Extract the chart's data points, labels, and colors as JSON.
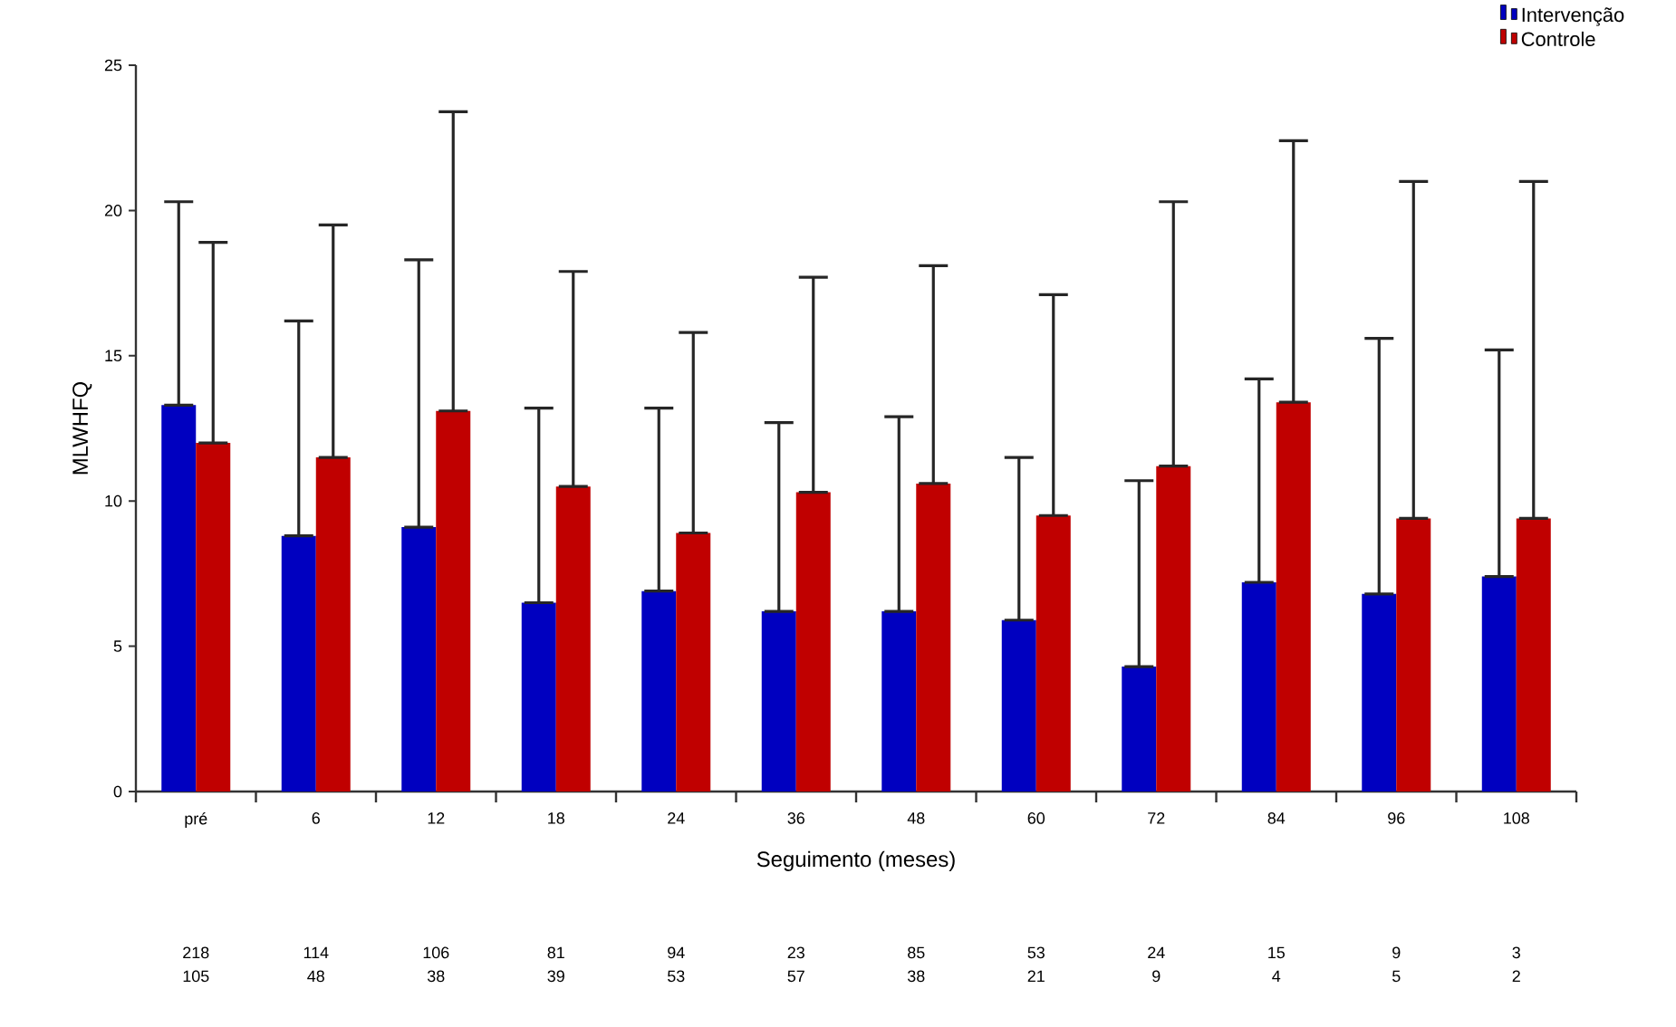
{
  "chart_data": {
    "type": "bar",
    "xlabel": "Seguimento (meses)",
    "ylabel": "MLWHFQ",
    "categories": [
      "pré",
      "6",
      "12",
      "18",
      "24",
      "36",
      "48",
      "60",
      "72",
      "84",
      "96",
      "108"
    ],
    "series": [
      {
        "name": "Intervenção",
        "color": "#0000c0",
        "values": [
          13.3,
          8.8,
          9.1,
          6.5,
          6.9,
          6.2,
          6.2,
          5.9,
          4.3,
          7.2,
          6.8,
          7.4
        ],
        "errors": [
          [
            13.3,
            20.3
          ],
          [
            8.8,
            16.2
          ],
          [
            9.1,
            18.3
          ],
          [
            6.5,
            13.2
          ],
          [
            6.9,
            13.2
          ],
          [
            6.2,
            12.7
          ],
          [
            6.2,
            12.9
          ],
          [
            5.9,
            11.5
          ],
          [
            4.3,
            10.7
          ],
          [
            7.2,
            14.2
          ],
          [
            6.8,
            15.6
          ],
          [
            7.4,
            15.2
          ]
        ]
      },
      {
        "name": "Controle",
        "color": "#c00000",
        "values": [
          12.0,
          11.5,
          13.1,
          10.5,
          8.9,
          10.3,
          10.6,
          9.5,
          11.2,
          13.4,
          9.4,
          9.4
        ],
        "errors": [
          [
            12.0,
            18.9
          ],
          [
            11.5,
            19.5
          ],
          [
            13.1,
            23.4
          ],
          [
            10.5,
            17.9
          ],
          [
            8.9,
            15.8
          ],
          [
            10.3,
            17.7
          ],
          [
            10.6,
            18.1
          ],
          [
            9.5,
            17.1
          ],
          [
            11.2,
            20.3
          ],
          [
            13.4,
            22.4
          ],
          [
            9.4,
            21.0
          ],
          [
            9.4,
            21.0
          ]
        ]
      }
    ],
    "ylim": [
      0,
      25
    ],
    "yticks": [
      0,
      5,
      10,
      15,
      20,
      25
    ],
    "grid": false,
    "legend": "top right",
    "annotations": [
      "218",
      "114",
      "106",
      "81",
      "94",
      "23",
      "85",
      "53",
      "24",
      "15",
      "9",
      "3",
      "105",
      "48",
      "38",
      "39",
      "53",
      "57",
      "38",
      "21",
      "9",
      "4",
      "5",
      "2"
    ]
  }
}
